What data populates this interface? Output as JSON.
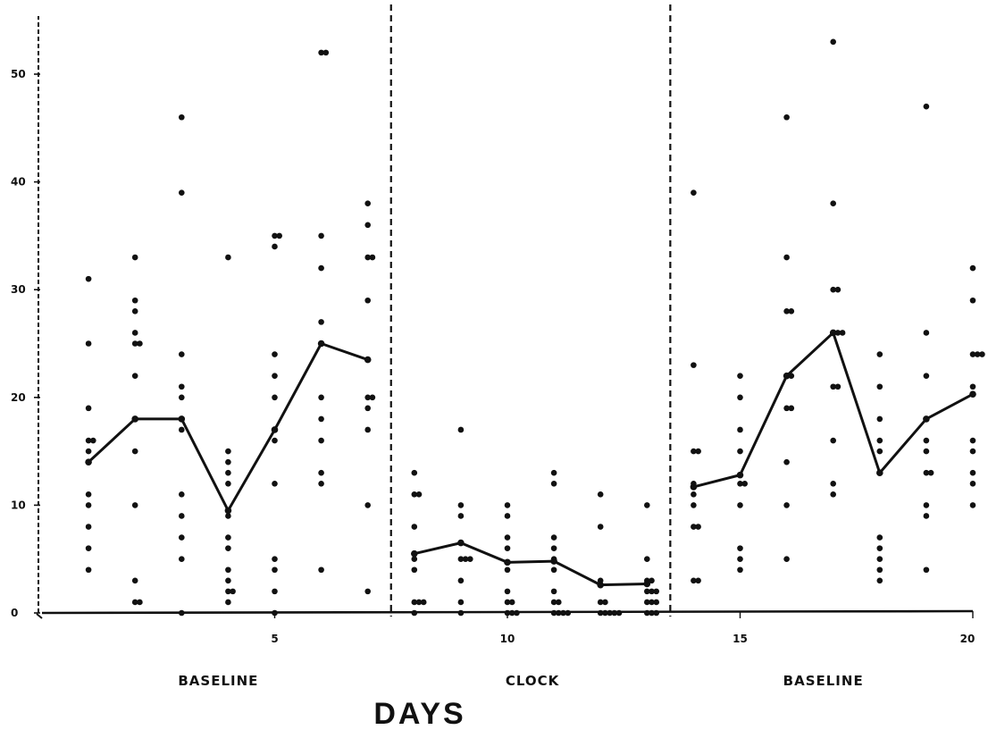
{
  "chart_data": {
    "type": "scatter",
    "title": "",
    "xlabel": "DAYS",
    "ylabel": "",
    "xlim": [
      0,
      20
    ],
    "ylim": [
      0,
      50
    ],
    "x_ticks": [
      5,
      10,
      15,
      20
    ],
    "x_tick_labels": [
      "5",
      "10",
      "15",
      "20"
    ],
    "y_ticks": [
      0,
      10,
      20,
      30,
      40,
      50
    ],
    "y_tick_labels": [
      "0",
      "10",
      "20",
      "30",
      "40",
      "50"
    ],
    "grid": false,
    "legend": "none",
    "phases": [
      {
        "label": "BASELINE",
        "start": 0,
        "end": 7.5
      },
      {
        "label": "CLOCK",
        "start": 7.5,
        "end": 13.5
      },
      {
        "label": "BASELINE",
        "start": 13.5,
        "end": 20
      }
    ],
    "phase_boundaries": [
      7.5,
      13.5
    ],
    "series": [
      {
        "kind": "points",
        "values": [
          [
            1,
            31
          ],
          [
            1,
            25
          ],
          [
            1,
            19
          ],
          [
            1,
            16
          ],
          [
            1.1,
            16
          ],
          [
            1,
            15
          ],
          [
            1,
            11
          ],
          [
            1,
            10
          ],
          [
            1,
            8
          ],
          [
            1,
            6
          ],
          [
            1,
            4
          ],
          [
            2,
            33
          ],
          [
            2,
            29
          ],
          [
            2,
            28
          ],
          [
            2,
            26
          ],
          [
            2,
            25
          ],
          [
            2.1,
            25
          ],
          [
            2,
            22
          ],
          [
            2,
            15
          ],
          [
            2,
            10
          ],
          [
            2,
            3
          ],
          [
            2,
            1
          ],
          [
            2.1,
            1
          ],
          [
            3,
            46
          ],
          [
            3,
            39
          ],
          [
            3,
            24
          ],
          [
            3,
            21
          ],
          [
            3,
            20
          ],
          [
            3,
            17
          ],
          [
            3,
            11
          ],
          [
            3,
            9
          ],
          [
            3,
            7
          ],
          [
            3,
            5
          ],
          [
            3,
            0
          ],
          [
            4,
            33
          ],
          [
            4,
            15
          ],
          [
            4,
            14
          ],
          [
            4,
            13
          ],
          [
            4,
            12
          ],
          [
            4,
            9
          ],
          [
            4,
            7
          ],
          [
            4,
            6
          ],
          [
            4,
            4
          ],
          [
            4,
            3
          ],
          [
            4,
            2
          ],
          [
            4.1,
            2
          ],
          [
            4,
            1
          ],
          [
            5,
            35
          ],
          [
            5.1,
            35
          ],
          [
            5,
            34
          ],
          [
            5,
            24
          ],
          [
            5,
            22
          ],
          [
            5,
            20
          ],
          [
            5,
            16
          ],
          [
            5,
            12
          ],
          [
            5,
            5
          ],
          [
            5,
            4
          ],
          [
            5,
            2
          ],
          [
            5,
            0
          ],
          [
            6,
            52
          ],
          [
            6.1,
            52
          ],
          [
            6,
            35
          ],
          [
            6,
            32
          ],
          [
            6,
            27
          ],
          [
            6,
            20
          ],
          [
            6,
            18
          ],
          [
            6,
            16
          ],
          [
            6,
            13
          ],
          [
            6,
            12
          ],
          [
            6,
            4
          ],
          [
            7,
            38
          ],
          [
            7,
            36
          ],
          [
            7,
            33
          ],
          [
            7.1,
            33
          ],
          [
            7,
            29
          ],
          [
            7,
            20
          ],
          [
            7.1,
            20
          ],
          [
            7,
            19
          ],
          [
            7,
            17
          ],
          [
            7,
            10
          ],
          [
            7,
            2
          ],
          [
            8,
            13
          ],
          [
            8,
            11
          ],
          [
            8.1,
            11
          ],
          [
            8,
            8
          ],
          [
            8,
            5
          ],
          [
            8,
            4
          ],
          [
            8,
            1
          ],
          [
            8.1,
            1
          ],
          [
            8.2,
            1
          ],
          [
            8,
            0
          ],
          [
            9,
            17
          ],
          [
            9,
            10
          ],
          [
            9,
            9
          ],
          [
            9,
            5
          ],
          [
            9.1,
            5
          ],
          [
            9.2,
            5
          ],
          [
            9,
            3
          ],
          [
            9,
            1
          ],
          [
            9,
            0
          ],
          [
            10,
            10
          ],
          [
            10,
            9
          ],
          [
            10,
            7
          ],
          [
            10,
            6
          ],
          [
            10,
            4
          ],
          [
            10,
            2
          ],
          [
            10,
            1
          ],
          [
            10.1,
            1
          ],
          [
            10,
            0
          ],
          [
            10.1,
            0
          ],
          [
            10.2,
            0
          ],
          [
            11,
            13
          ],
          [
            11,
            12
          ],
          [
            11,
            7
          ],
          [
            11,
            6
          ],
          [
            11,
            5
          ],
          [
            11,
            4
          ],
          [
            11,
            2
          ],
          [
            11,
            1
          ],
          [
            11.1,
            1
          ],
          [
            11,
            0
          ],
          [
            11.1,
            0
          ],
          [
            11.2,
            0
          ],
          [
            11.3,
            0
          ],
          [
            12,
            11
          ],
          [
            12,
            8
          ],
          [
            12,
            3
          ],
          [
            12,
            1
          ],
          [
            12.1,
            1
          ],
          [
            12,
            0
          ],
          [
            12.1,
            0
          ],
          [
            12.2,
            0
          ],
          [
            12.3,
            0
          ],
          [
            12.4,
            0
          ],
          [
            13,
            10
          ],
          [
            13,
            5
          ],
          [
            13,
            3
          ],
          [
            13.1,
            3
          ],
          [
            13,
            2
          ],
          [
            13.1,
            2
          ],
          [
            13.2,
            2
          ],
          [
            13,
            1
          ],
          [
            13.1,
            1
          ],
          [
            13.2,
            1
          ],
          [
            13,
            0
          ],
          [
            13.1,
            0
          ],
          [
            13.2,
            0
          ],
          [
            14,
            39
          ],
          [
            14,
            23
          ],
          [
            14,
            15
          ],
          [
            14.1,
            15
          ],
          [
            14,
            12
          ],
          [
            14,
            11
          ],
          [
            14,
            10
          ],
          [
            14,
            8
          ],
          [
            14.1,
            8
          ],
          [
            14,
            3
          ],
          [
            14.1,
            3
          ],
          [
            15,
            22
          ],
          [
            15,
            20
          ],
          [
            15,
            17
          ],
          [
            15,
            15
          ],
          [
            15,
            12
          ],
          [
            15.1,
            12
          ],
          [
            15,
            10
          ],
          [
            15,
            6
          ],
          [
            15,
            5
          ],
          [
            15,
            4
          ],
          [
            16,
            46
          ],
          [
            16,
            33
          ],
          [
            16,
            28
          ],
          [
            16.1,
            28
          ],
          [
            16,
            22
          ],
          [
            16.1,
            22
          ],
          [
            16,
            19
          ],
          [
            16.1,
            19
          ],
          [
            16,
            14
          ],
          [
            16,
            10
          ],
          [
            16,
            5
          ],
          [
            17,
            53
          ],
          [
            17,
            38
          ],
          [
            17,
            30
          ],
          [
            17.1,
            30
          ],
          [
            17,
            26
          ],
          [
            17.1,
            26
          ],
          [
            17.2,
            26
          ],
          [
            17,
            21
          ],
          [
            17.1,
            21
          ],
          [
            17,
            16
          ],
          [
            17,
            12
          ],
          [
            17,
            11
          ],
          [
            18,
            24
          ],
          [
            18,
            21
          ],
          [
            18,
            18
          ],
          [
            18,
            16
          ],
          [
            18,
            15
          ],
          [
            18,
            13
          ],
          [
            18,
            7
          ],
          [
            18,
            6
          ],
          [
            18,
            5
          ],
          [
            18,
            4
          ],
          [
            18,
            3
          ],
          [
            19,
            47
          ],
          [
            19,
            26
          ],
          [
            19,
            22
          ],
          [
            19,
            18
          ],
          [
            19,
            16
          ],
          [
            19,
            15
          ],
          [
            19,
            13
          ],
          [
            19.1,
            13
          ],
          [
            19,
            10
          ],
          [
            19,
            9
          ],
          [
            19,
            4
          ],
          [
            20,
            32
          ],
          [
            20,
            29
          ],
          [
            20,
            24
          ],
          [
            20.1,
            24
          ],
          [
            20.2,
            24
          ],
          [
            20,
            21
          ],
          [
            20,
            16
          ],
          [
            20,
            15
          ],
          [
            20,
            13
          ],
          [
            20,
            12
          ],
          [
            20,
            10
          ]
        ]
      },
      {
        "kind": "mean-line",
        "segments": [
          [
            [
              1,
              14
            ],
            [
              2,
              18
            ],
            [
              3,
              18
            ],
            [
              4,
              9.5
            ],
            [
              5,
              17
            ],
            [
              6,
              25
            ],
            [
              7,
              23.5
            ]
          ],
          [
            [
              8,
              5.5
            ],
            [
              9,
              6.5
            ],
            [
              10,
              4.7
            ],
            [
              11,
              4.8
            ],
            [
              12,
              2.6
            ],
            [
              13,
              2.7
            ]
          ],
          [
            [
              14,
              11.7
            ],
            [
              15,
              12.8
            ],
            [
              16,
              22
            ],
            [
              17,
              26
            ],
            [
              18,
              13
            ],
            [
              19,
              18
            ],
            [
              20,
              20.3
            ]
          ]
        ]
      }
    ]
  }
}
